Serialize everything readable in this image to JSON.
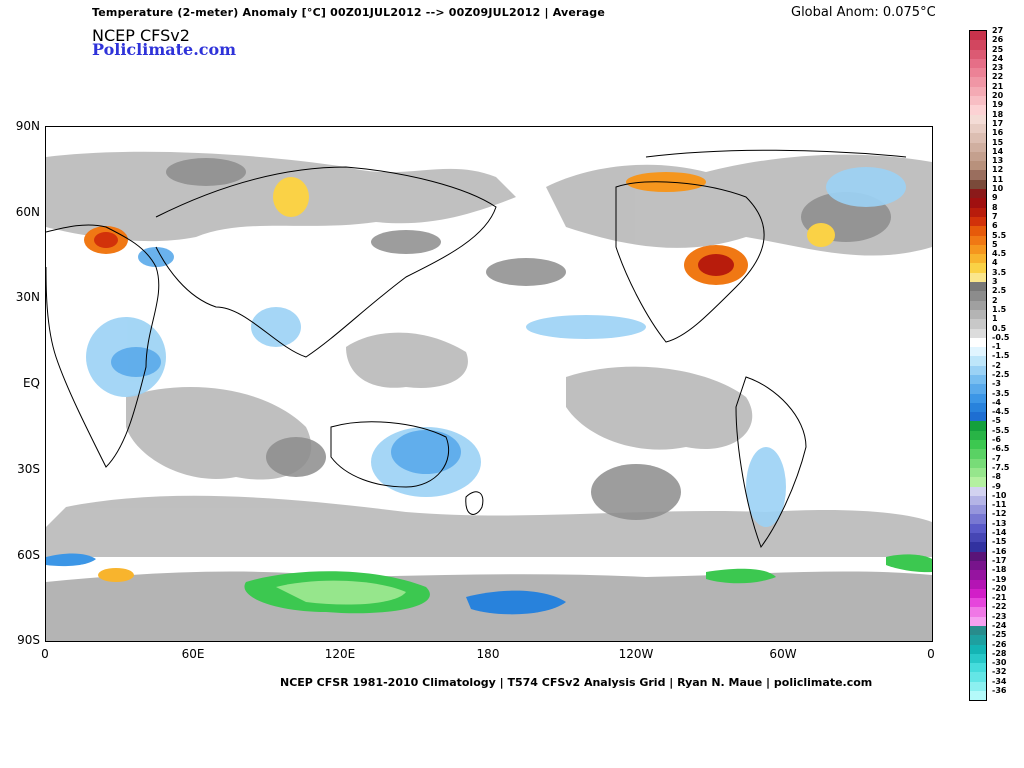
{
  "header": {
    "title": "Temperature (2-meter) Anomaly  [°C] 00Z01JUL2012 --> 00Z09JUL2012 | Average",
    "global_anom": "Global Anom: 0.075°C",
    "model": "NCEP CFSv2",
    "site": "Policlimate.com"
  },
  "map": {
    "lat_labels": [
      "90N",
      "60N",
      "30N",
      "EQ",
      "30S",
      "60S",
      "90S"
    ],
    "lon_labels": [
      "0",
      "60E",
      "120E",
      "180",
      "120W",
      "60W",
      "0"
    ]
  },
  "footer": {
    "text": "NCEP CFSR 1981-2010 Climatology | T574 CFSv2 Analysis Grid | Ryan N. Maue | policlimate.com"
  },
  "colorbar": {
    "labels": [
      "27",
      "26",
      "25",
      "24",
      "23",
      "22",
      "21",
      "20",
      "19",
      "18",
      "17",
      "16",
      "15",
      "14",
      "13",
      "12",
      "11",
      "10",
      "9",
      "8",
      "7",
      "6",
      "5.5",
      "5",
      "4.5",
      "4",
      "3.5",
      "3",
      "2.5",
      "2",
      "1.5",
      "1",
      "0.5",
      "-0.5",
      "-1",
      "-1.5",
      "-2",
      "-2.5",
      "-3",
      "-3.5",
      "-4",
      "-4.5",
      "-5",
      "-5.5",
      "-6",
      "-6.5",
      "-7",
      "-7.5",
      "-8",
      "-9",
      "-10",
      "-11",
      "-12",
      "-13",
      "-14",
      "-15",
      "-16",
      "-17",
      "-18",
      "-19",
      "-20",
      "-21",
      "-22",
      "-23",
      "-24",
      "-25",
      "-26",
      "-28",
      "-30",
      "-32",
      "-34",
      "-36"
    ],
    "colors": [
      "#c8324b",
      "#d2465f",
      "#dc5a73",
      "#e66e87",
      "#ec8296",
      "#f096a5",
      "#f4aab4",
      "#f8bec4",
      "#fcd2d4",
      "#f4dcd6",
      "#e8cdc4",
      "#dcbeb2",
      "#d0afa0",
      "#c4a08e",
      "#b8917c",
      "#9a6e5e",
      "#7a4a3a",
      "#8b1a1a",
      "#a01010",
      "#b81c0c",
      "#d2320a",
      "#e65a0a",
      "#f07814",
      "#f5961e",
      "#f8b42d",
      "#fad246",
      "#fae68c",
      "#787878",
      "#8c8c8c",
      "#a0a0a0",
      "#b4b4b4",
      "#c8c8c8",
      "#dcdcdc",
      "#ffffff",
      "#e1f5ff",
      "#bee6fa",
      "#9bd2f5",
      "#78bef0",
      "#5aaaeb",
      "#3c96e6",
      "#2882dc",
      "#1e6ed2",
      "#14a03c",
      "#28b446",
      "#3cc850",
      "#5ad264",
      "#78dc78",
      "#96e68c",
      "#b4f0a0",
      "#d2d2f0",
      "#b4b4e6",
      "#9696dc",
      "#7878d2",
      "#5a5ac8",
      "#4646b4",
      "#3232a0",
      "#5a1478",
      "#78148c",
      "#9614a0",
      "#b414b4",
      "#d21ec8",
      "#e646dc",
      "#f078e6",
      "#f5a0f0",
      "#288c8c",
      "#1ea0a0",
      "#14b4b4",
      "#28c8c8",
      "#46dcdc",
      "#64e6e6",
      "#8cf0f0",
      "#b4fafa"
    ]
  }
}
